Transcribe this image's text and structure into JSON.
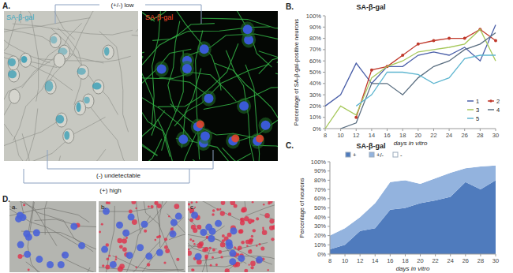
{
  "panels": {
    "A": {
      "label": "A.",
      "image_labels": [
        "SA-β-gal",
        "SA-β-gal"
      ],
      "annotations": [
        "(+/-) low",
        "(-) undetectable",
        "(+) high"
      ]
    },
    "B": {
      "label": "B."
    },
    "C": {
      "label": "C."
    },
    "D": {
      "label": "D.",
      "image_labels": [
        "a.",
        "b.",
        "c."
      ]
    }
  },
  "chart_data": [
    {
      "type": "line",
      "title": "SA-β-gal",
      "xlabel": "days in vitro",
      "ylabel": "Percentage of SA-β-gal-positive neurons",
      "x": [
        8,
        10,
        12,
        14,
        16,
        18,
        20,
        22,
        24,
        26,
        28,
        30
      ],
      "series": [
        {
          "name": "1",
          "color": "#4a5fa8",
          "values": [
            20,
            30,
            58,
            40,
            55,
            55,
            65,
            68,
            65,
            72,
            60,
            92
          ]
        },
        {
          "name": "2",
          "color": "#c0392b",
          "marker": "circle",
          "values": [
            null,
            null,
            10,
            52,
            55,
            65,
            75,
            78,
            80,
            80,
            88,
            78
          ]
        },
        {
          "name": "3",
          "color": "#a6c85a",
          "values": [
            0,
            20,
            12,
            45,
            55,
            60,
            68,
            70,
            72,
            75,
            88,
            60
          ]
        },
        {
          "name": "4",
          "color": "#5a6e80",
          "values": [
            null,
            0,
            5,
            40,
            40,
            30,
            45,
            55,
            60,
            70,
            75,
            85
          ]
        },
        {
          "name": "5",
          "color": "#5fb6d0",
          "values": [
            null,
            null,
            20,
            30,
            50,
            50,
            48,
            40,
            45,
            62,
            65,
            65
          ]
        }
      ],
      "xlim": [
        8,
        30
      ],
      "ylim": [
        0,
        100
      ],
      "xticks": [
        8,
        10,
        12,
        14,
        16,
        18,
        20,
        22,
        24,
        26,
        28,
        30
      ],
      "yticks": [
        {
          "value": 0,
          "label": "0%"
        },
        {
          "value": 10,
          "label": "10%"
        },
        {
          "value": 20,
          "label": "20%"
        },
        {
          "value": 30,
          "label": "30%"
        },
        {
          "value": 40,
          "label": "40%"
        },
        {
          "value": 50,
          "label": "50%"
        },
        {
          "value": 60,
          "label": "60%"
        },
        {
          "value": 70,
          "label": "70%"
        },
        {
          "value": 80,
          "label": "80%"
        },
        {
          "value": 90,
          "label": "90%"
        },
        {
          "value": 100,
          "label": "100%"
        }
      ],
      "legend": "right"
    },
    {
      "type": "area",
      "stacked": true,
      "title": "SA-β-gal",
      "xlabel": "days in vitro",
      "ylabel": "Percentage of neurons",
      "x": [
        8,
        10,
        12,
        14,
        16,
        18,
        20,
        22,
        24,
        26,
        28,
        30
      ],
      "series": [
        {
          "name": "+",
          "color": "#4f7bbd",
          "values": [
            5,
            10,
            25,
            28,
            48,
            50,
            55,
            58,
            62,
            78,
            70,
            80
          ]
        },
        {
          "name": "+/-",
          "color": "#93b3de",
          "values": [
            15,
            18,
            15,
            27,
            30,
            30,
            21,
            24,
            26,
            15,
            25,
            16
          ]
        },
        {
          "name": "-",
          "color": "#ffffff",
          "values": [
            80,
            72,
            60,
            45,
            22,
            20,
            24,
            18,
            12,
            7,
            5,
            4
          ]
        }
      ],
      "xlim": [
        8,
        30
      ],
      "ylim": [
        0,
        100
      ],
      "xticks": [
        8,
        10,
        12,
        14,
        16,
        18,
        20,
        22,
        24,
        26,
        28,
        30
      ],
      "yticks": [
        {
          "value": 0,
          "label": "0%"
        },
        {
          "value": 10,
          "label": "10%"
        },
        {
          "value": 20,
          "label": "20%"
        },
        {
          "value": 30,
          "label": "30%"
        },
        {
          "value": 40,
          "label": "40%"
        },
        {
          "value": 50,
          "label": "50%"
        },
        {
          "value": 60,
          "label": "60%"
        },
        {
          "value": 70,
          "label": "70%"
        },
        {
          "value": 80,
          "label": "80%"
        },
        {
          "value": 90,
          "label": "90%"
        },
        {
          "value": 100,
          "label": "100%"
        }
      ],
      "legend": "top"
    }
  ]
}
